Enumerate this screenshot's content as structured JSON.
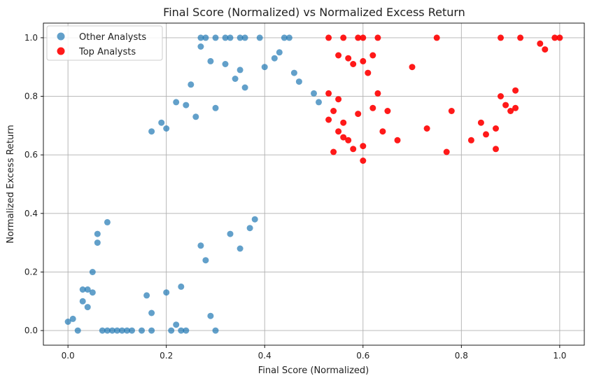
{
  "chart_data": {
    "type": "scatter",
    "title": "Final Score (Normalized) vs Normalized Excess Return",
    "xlabel": "Final Score (Normalized)",
    "ylabel": "Normalized Excess Return",
    "xlim": [
      -0.05,
      1.05
    ],
    "ylim": [
      -0.05,
      1.05
    ],
    "x_ticks": [
      "0.0",
      "0.2",
      "0.4",
      "0.6",
      "0.8",
      "1.0"
    ],
    "y_ticks": [
      "0.0",
      "0.2",
      "0.4",
      "0.6",
      "0.8",
      "1.0"
    ],
    "grid": true,
    "legend_position": "top-left",
    "series": [
      {
        "name": "Other Analysts",
        "color": "#1f77b4",
        "points": [
          [
            0.0,
            0.03
          ],
          [
            0.01,
            0.04
          ],
          [
            0.02,
            0.0
          ],
          [
            0.03,
            0.14
          ],
          [
            0.03,
            0.1
          ],
          [
            0.04,
            0.08
          ],
          [
            0.04,
            0.14
          ],
          [
            0.05,
            0.2
          ],
          [
            0.05,
            0.13
          ],
          [
            0.06,
            0.3
          ],
          [
            0.06,
            0.33
          ],
          [
            0.07,
            0.0
          ],
          [
            0.08,
            0.0
          ],
          [
            0.08,
            0.37
          ],
          [
            0.09,
            0.0
          ],
          [
            0.1,
            0.0
          ],
          [
            0.11,
            0.0
          ],
          [
            0.12,
            0.0
          ],
          [
            0.13,
            0.0
          ],
          [
            0.15,
            0.0
          ],
          [
            0.17,
            0.0
          ],
          [
            0.21,
            0.0
          ],
          [
            0.22,
            0.02
          ],
          [
            0.23,
            0.0
          ],
          [
            0.24,
            0.0
          ],
          [
            0.29,
            0.05
          ],
          [
            0.3,
            0.0
          ],
          [
            0.27,
            1.0
          ],
          [
            0.28,
            1.0
          ],
          [
            0.3,
            1.0
          ],
          [
            0.32,
            1.0
          ],
          [
            0.33,
            1.0
          ],
          [
            0.35,
            1.0
          ],
          [
            0.36,
            1.0
          ],
          [
            0.39,
            1.0
          ],
          [
            0.44,
            1.0
          ],
          [
            0.45,
            1.0
          ],
          [
            0.27,
            0.97
          ],
          [
            0.29,
            0.92
          ],
          [
            0.32,
            0.91
          ],
          [
            0.35,
            0.89
          ],
          [
            0.4,
            0.9
          ],
          [
            0.42,
            0.93
          ],
          [
            0.43,
            0.95
          ],
          [
            0.46,
            0.88
          ],
          [
            0.47,
            0.85
          ],
          [
            0.5,
            0.81
          ],
          [
            0.51,
            0.78
          ],
          [
            0.22,
            0.78
          ],
          [
            0.24,
            0.77
          ],
          [
            0.25,
            0.84
          ],
          [
            0.19,
            0.71
          ],
          [
            0.2,
            0.69
          ],
          [
            0.17,
            0.68
          ],
          [
            0.16,
            0.12
          ],
          [
            0.17,
            0.06
          ],
          [
            0.2,
            0.13
          ],
          [
            0.23,
            0.15
          ],
          [
            0.27,
            0.29
          ],
          [
            0.28,
            0.24
          ],
          [
            0.33,
            0.33
          ],
          [
            0.35,
            0.28
          ],
          [
            0.37,
            0.35
          ],
          [
            0.38,
            0.38
          ],
          [
            0.34,
            0.86
          ],
          [
            0.36,
            0.83
          ],
          [
            0.26,
            0.73
          ],
          [
            0.3,
            0.76
          ]
        ]
      },
      {
        "name": "Top Analysts",
        "color": "#ff0000",
        "points": [
          [
            0.53,
            0.81
          ],
          [
            0.54,
            0.75
          ],
          [
            0.55,
            0.79
          ],
          [
            0.55,
            0.68
          ],
          [
            0.56,
            0.71
          ],
          [
            0.57,
            0.65
          ],
          [
            0.58,
            0.62
          ],
          [
            0.58,
            0.91
          ],
          [
            0.59,
            0.74
          ],
          [
            0.6,
            0.58
          ],
          [
            0.6,
            0.63
          ],
          [
            0.61,
            0.88
          ],
          [
            0.62,
            0.76
          ],
          [
            0.63,
            0.81
          ],
          [
            0.64,
            0.68
          ],
          [
            0.65,
            0.75
          ],
          [
            0.67,
            0.65
          ],
          [
            0.7,
            0.9
          ],
          [
            0.73,
            0.69
          ],
          [
            0.77,
            0.61
          ],
          [
            0.78,
            0.75
          ],
          [
            0.82,
            0.65
          ],
          [
            0.84,
            0.71
          ],
          [
            0.85,
            0.67
          ],
          [
            0.87,
            0.62
          ],
          [
            0.87,
            0.69
          ],
          [
            0.88,
            0.8
          ],
          [
            0.89,
            0.77
          ],
          [
            0.9,
            0.75
          ],
          [
            0.91,
            0.82
          ],
          [
            0.91,
            0.76
          ],
          [
            0.96,
            0.98
          ],
          [
            0.97,
            0.96
          ],
          [
            0.53,
            1.0
          ],
          [
            0.56,
            1.0
          ],
          [
            0.59,
            1.0
          ],
          [
            0.6,
            1.0
          ],
          [
            0.63,
            1.0
          ],
          [
            0.75,
            1.0
          ],
          [
            0.88,
            1.0
          ],
          [
            0.92,
            1.0
          ],
          [
            0.99,
            1.0
          ],
          [
            1.0,
            1.0
          ],
          [
            0.55,
            0.94
          ],
          [
            0.57,
            0.93
          ],
          [
            0.6,
            0.92
          ],
          [
            0.62,
            0.94
          ],
          [
            0.53,
            0.72
          ],
          [
            0.54,
            0.61
          ],
          [
            0.56,
            0.66
          ]
        ]
      }
    ]
  }
}
